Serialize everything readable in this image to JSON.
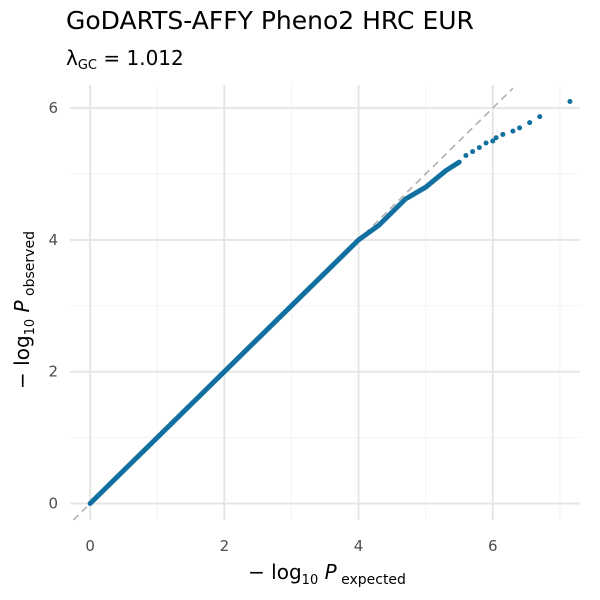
{
  "title": "GoDARTS-AFFY Pheno2 HRC EUR",
  "subtitle": {
    "lambda_symbol": "λ",
    "lambda_subscript": "GC",
    "equals": " = ",
    "value": "1.012"
  },
  "colors": {
    "points": "#1170a0",
    "diagonal": "#b0b0b0",
    "grid_major": "#e6e6e6",
    "grid_minor": "#f3f3f3",
    "tick_label": "#4d4d4d"
  },
  "chart_data": {
    "type": "scatter",
    "title": "GoDARTS-AFFY Pheno2 HRC EUR",
    "subtitle": "λGC = 1.012",
    "xlabel": "−log10 P expected",
    "ylabel": "−log10 P observed",
    "xlim": [
      -0.3,
      7.3
    ],
    "ylim": [
      -0.25,
      6.35
    ],
    "xticks": [
      0,
      2,
      4,
      6
    ],
    "yticks": [
      0,
      2,
      4,
      6
    ],
    "x_tick_labels": [
      "0",
      "2",
      "4",
      "6"
    ],
    "y_tick_labels": [
      "0",
      "2",
      "4",
      "6"
    ],
    "grid": true,
    "reference_line": "y = x",
    "curve": [
      [
        0,
        0
      ],
      [
        1,
        1
      ],
      [
        2,
        2
      ],
      [
        3,
        3
      ],
      [
        3.6,
        3.6
      ],
      [
        4.0,
        4.0
      ],
      [
        4.3,
        4.22
      ],
      [
        4.7,
        4.62
      ],
      [
        5.0,
        4.8
      ],
      [
        5.3,
        5.05
      ],
      [
        5.5,
        5.18
      ]
    ],
    "tail_points": [
      [
        5.6,
        5.28
      ],
      [
        5.7,
        5.34
      ],
      [
        5.8,
        5.4
      ],
      [
        5.9,
        5.47
      ],
      [
        6.0,
        5.5
      ],
      [
        6.05,
        5.55
      ],
      [
        6.15,
        5.6
      ],
      [
        6.3,
        5.65
      ],
      [
        6.4,
        5.7
      ],
      [
        6.55,
        5.78
      ],
      [
        6.7,
        5.87
      ],
      [
        7.15,
        6.1
      ]
    ],
    "series": [
      {
        "values_ref": "curve+tail_points"
      }
    ]
  }
}
